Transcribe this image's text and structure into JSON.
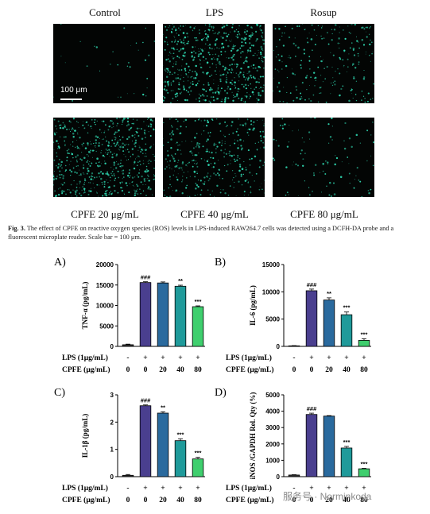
{
  "figure": {
    "top_labels": [
      "Control",
      "LPS",
      "Rosup"
    ],
    "bottom_labels": [
      "CPFE 20 μg/mL",
      "CPFE 40 μg/mL",
      "CPFE 80 μg/mL"
    ],
    "scale_bar_label": "100 μm",
    "caption_prefix": "Fig. 3.",
    "caption_text": "The effect of CPFE on reactive oxygen species (ROS) levels in LPS-induced RAW264.7 cells was detected using a DCFH-DA probe and a fluorescent microplate reader. Scale bar = 100 μm.",
    "micrograph_color": "#2fd7b0",
    "micrograph_density": [
      0.05,
      1.0,
      0.35,
      0.9,
      0.55,
      0.15
    ]
  },
  "row_labels": {
    "lps": "LPS (1μg/mL)",
    "cpfe": "CPFE (μg/mL)",
    "lps_values": [
      "-",
      "+",
      "+",
      "+",
      "+"
    ],
    "cpfe_values": [
      "0",
      "0",
      "20",
      "40",
      "80"
    ]
  },
  "bar_colors": [
    "#3a3a3a",
    "#4a3f8f",
    "#2a6a9e",
    "#1f9a9a",
    "#3fcf6e"
  ],
  "watermark": "服务号 · Norminkoda",
  "chart_data": [
    {
      "type": "bar",
      "panel": "A)",
      "ylabel": "TNF-α (pg/mL)",
      "categories": [
        "1",
        "2",
        "3",
        "4",
        "5"
      ],
      "values": [
        400,
        15600,
        15500,
        14700,
        9700
      ],
      "errors": [
        150,
        200,
        250,
        250,
        200
      ],
      "annotations": [
        "",
        "###",
        "",
        "**",
        "***"
      ],
      "ylim": [
        0,
        20000
      ],
      "yticks": [
        0,
        5000,
        10000,
        15000,
        20000
      ]
    },
    {
      "type": "bar",
      "panel": "B)",
      "ylabel": "IL-6 (pg/mL)",
      "categories": [
        "1",
        "2",
        "3",
        "4",
        "5"
      ],
      "values": [
        100,
        10200,
        8500,
        5800,
        1100
      ],
      "errors": [
        40,
        300,
        400,
        500,
        300
      ],
      "annotations": [
        "",
        "###",
        "**",
        "***",
        "***"
      ],
      "ylim": [
        0,
        15000
      ],
      "yticks": [
        0,
        5000,
        10000,
        15000
      ]
    },
    {
      "type": "bar",
      "panel": "C)",
      "ylabel": "IL-1β (pg/mL)",
      "categories": [
        "1",
        "2",
        "3",
        "4",
        "5"
      ],
      "values": [
        0.05,
        2.6,
        2.33,
        1.32,
        0.65
      ],
      "errors": [
        0.03,
        0.03,
        0.05,
        0.07,
        0.06
      ],
      "annotations": [
        "",
        "###",
        "**",
        "***",
        "***"
      ],
      "ylim": [
        0,
        3
      ],
      "yticks": [
        0,
        1,
        2,
        3
      ]
    },
    {
      "type": "bar",
      "panel": "D)",
      "ylabel": "iNOS /GAPDH Rel. Qty (%)",
      "categories": [
        "1",
        "2",
        "3",
        "4",
        "5"
      ],
      "values": [
        100,
        3800,
        3700,
        1750,
        480
      ],
      "errors": [
        20,
        80,
        30,
        100,
        30
      ],
      "annotations": [
        "",
        "###",
        "",
        "***",
        "***"
      ],
      "ylim": [
        0,
        5000
      ],
      "yticks": [
        0,
        1000,
        2000,
        3000,
        4000,
        5000
      ]
    }
  ]
}
